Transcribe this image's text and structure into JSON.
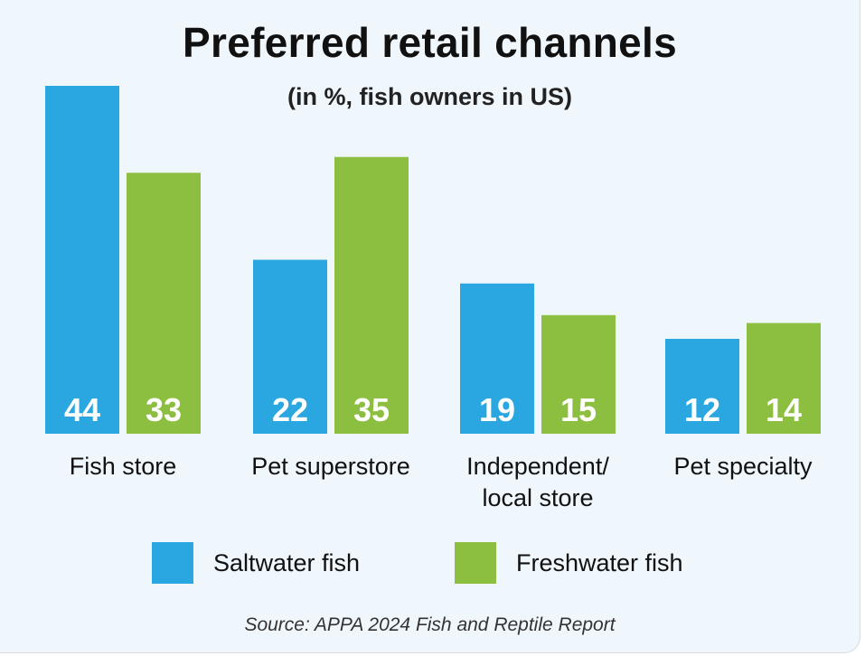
{
  "colors": {
    "saltwater": "#2aa7e0",
    "freshwater": "#8cbf3f",
    "background": "#eff6fc"
  },
  "chart_data": {
    "type": "bar",
    "title": "Preferred retail channels",
    "subtitle": "(in %, fish owners in US)",
    "categories": [
      [
        "Fish store"
      ],
      [
        "Pet superstore"
      ],
      [
        "Independent/",
        "local store"
      ],
      [
        "Pet specialty"
      ]
    ],
    "series": [
      {
        "name": "Saltwater fish",
        "values": [
          44,
          22,
          19,
          12
        ]
      },
      {
        "name": "Freshwater fish",
        "values": [
          33,
          35,
          15,
          14
        ]
      }
    ],
    "ylim": [
      0,
      44
    ],
    "grid": false,
    "legend_position": "bottom"
  },
  "source": "Source: APPA 2024 Fish and Reptile Report"
}
